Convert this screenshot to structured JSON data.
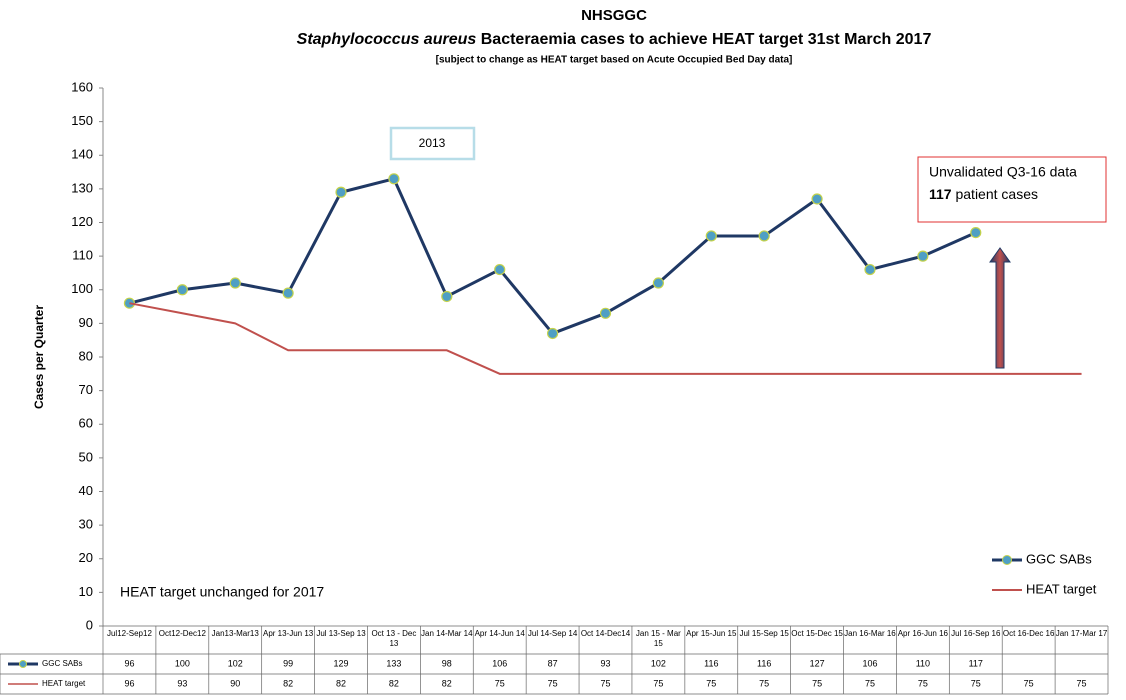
{
  "chart_data": {
    "type": "line",
    "title": "NHSGGC",
    "subtitle_italic": "Staphylococcus aureus",
    "subtitle": "Bacteraemia cases to achieve HEAT target 31st March 2017",
    "note": "[subject to change  as HEAT target based on Acute Occupied Bed Day data]",
    "y_label": "Cases per Quarter",
    "categories": [
      "Jul12-Sep12",
      "Oct12-Dec12",
      "Jan13-Mar13",
      "Apr 13-Jun 13",
      "Jul 13-Sep 13",
      "Oct 13 - Dec 13",
      "Jan 14-Mar 14",
      "Apr 14-Jun 14",
      "Jul 14-Sep 14",
      "Oct 14-Dec14",
      "Jan 15 - Mar 15",
      "Apr 15-Jun 15",
      "Jul 15-Sep 15",
      "Oct 15-Dec 15",
      "Jan 16-Mar 16",
      "Apr 16-Jun 16",
      "Jul 16-Sep 16",
      "Oct 16-Dec 16",
      "Jan 17-Mar 17"
    ],
    "series": [
      {
        "name": "GGC SABs",
        "color": "#1f3864",
        "marker_color": "#4f9fc4",
        "marker_edge": "#c4d24a",
        "values": [
          96,
          100,
          102,
          99,
          129,
          133,
          98,
          106,
          87,
          93,
          102,
          116,
          116,
          127,
          106,
          110,
          117,
          null,
          null
        ]
      },
      {
        "name": "HEAT target",
        "color": "#c0504d",
        "values": [
          96,
          93,
          90,
          82,
          82,
          82,
          82,
          75,
          75,
          75,
          75,
          75,
          75,
          75,
          75,
          75,
          75,
          75,
          75
        ]
      }
    ],
    "ylim": [
      0,
      160
    ],
    "yticks": [
      0,
      10,
      20,
      30,
      40,
      50,
      60,
      70,
      80,
      90,
      100,
      110,
      120,
      130,
      140,
      150,
      160
    ],
    "annotations": {
      "year_box": "2013",
      "footnote": "HEAT target unchanged for 2017",
      "callout_line1": "Unvalidated Q3-16 data",
      "callout_number": "117",
      "callout_rest": "patient cases"
    }
  }
}
